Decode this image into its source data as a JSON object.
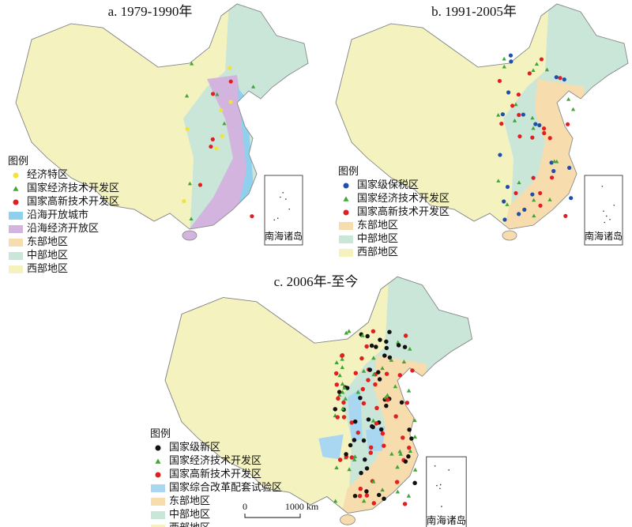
{
  "panels": [
    {
      "title": "a. 1979-1990年",
      "legend_title": "图例",
      "legend": [
        {
          "label": "经济特区",
          "color": "#f2e33a",
          "symbol": "circle"
        },
        {
          "label": "国家经济技术开发区",
          "color": "#3fa535",
          "symbol": "triangle"
        },
        {
          "label": "国家高新技术开发区",
          "color": "#e02020",
          "symbol": "circle"
        },
        {
          "label": "沿海开放城市",
          "color": "#8fd0ee",
          "symbol": "rect"
        },
        {
          "label": "沿海经济开放区",
          "color": "#d2b4de",
          "symbol": "rect"
        },
        {
          "label": "东部地区",
          "color": "#f7dcae",
          "symbol": "rect"
        },
        {
          "label": "中部地区",
          "color": "#c9e6d8",
          "symbol": "rect"
        },
        {
          "label": "西部地区",
          "color": "#f4f3c0",
          "symbol": "rect"
        }
      ],
      "inset_label": "南海诸岛"
    },
    {
      "title": "b. 1991-2005年",
      "legend_title": "图例",
      "legend": [
        {
          "label": "国家级保税区",
          "color": "#1f4fa8",
          "symbol": "circle"
        },
        {
          "label": "国家经济技术开发区",
          "color": "#3fa535",
          "symbol": "triangle"
        },
        {
          "label": "国家高新技术开发区",
          "color": "#e02020",
          "symbol": "circle"
        },
        {
          "label": "东部地区",
          "color": "#f7dcae",
          "symbol": "rect"
        },
        {
          "label": "中部地区",
          "color": "#c9e6d8",
          "symbol": "rect"
        },
        {
          "label": "西部地区",
          "color": "#f4f3c0",
          "symbol": "rect"
        }
      ],
      "inset_label": "南海诸岛"
    },
    {
      "title": "c. 2006年-至今",
      "legend_title": "图例",
      "legend": [
        {
          "label": "国家级新区",
          "color": "#111111",
          "symbol": "circle"
        },
        {
          "label": "国家经济技术开发区",
          "color": "#3fa535",
          "symbol": "triangle"
        },
        {
          "label": "国家高新技术开发区",
          "color": "#e02020",
          "symbol": "circle"
        },
        {
          "label": "国家综合改革配套试验区",
          "color": "#a9d6f0",
          "symbol": "rect"
        },
        {
          "label": "东部地区",
          "color": "#f7dcae",
          "symbol": "rect"
        },
        {
          "label": "中部地区",
          "color": "#c9e6d8",
          "symbol": "rect"
        },
        {
          "label": "西部地区",
          "color": "#f4f3c0",
          "symbol": "rect"
        }
      ],
      "inset_label": "南海诸岛"
    }
  ],
  "scale_bar": {
    "labels": [
      "0",
      "1000 km"
    ]
  }
}
